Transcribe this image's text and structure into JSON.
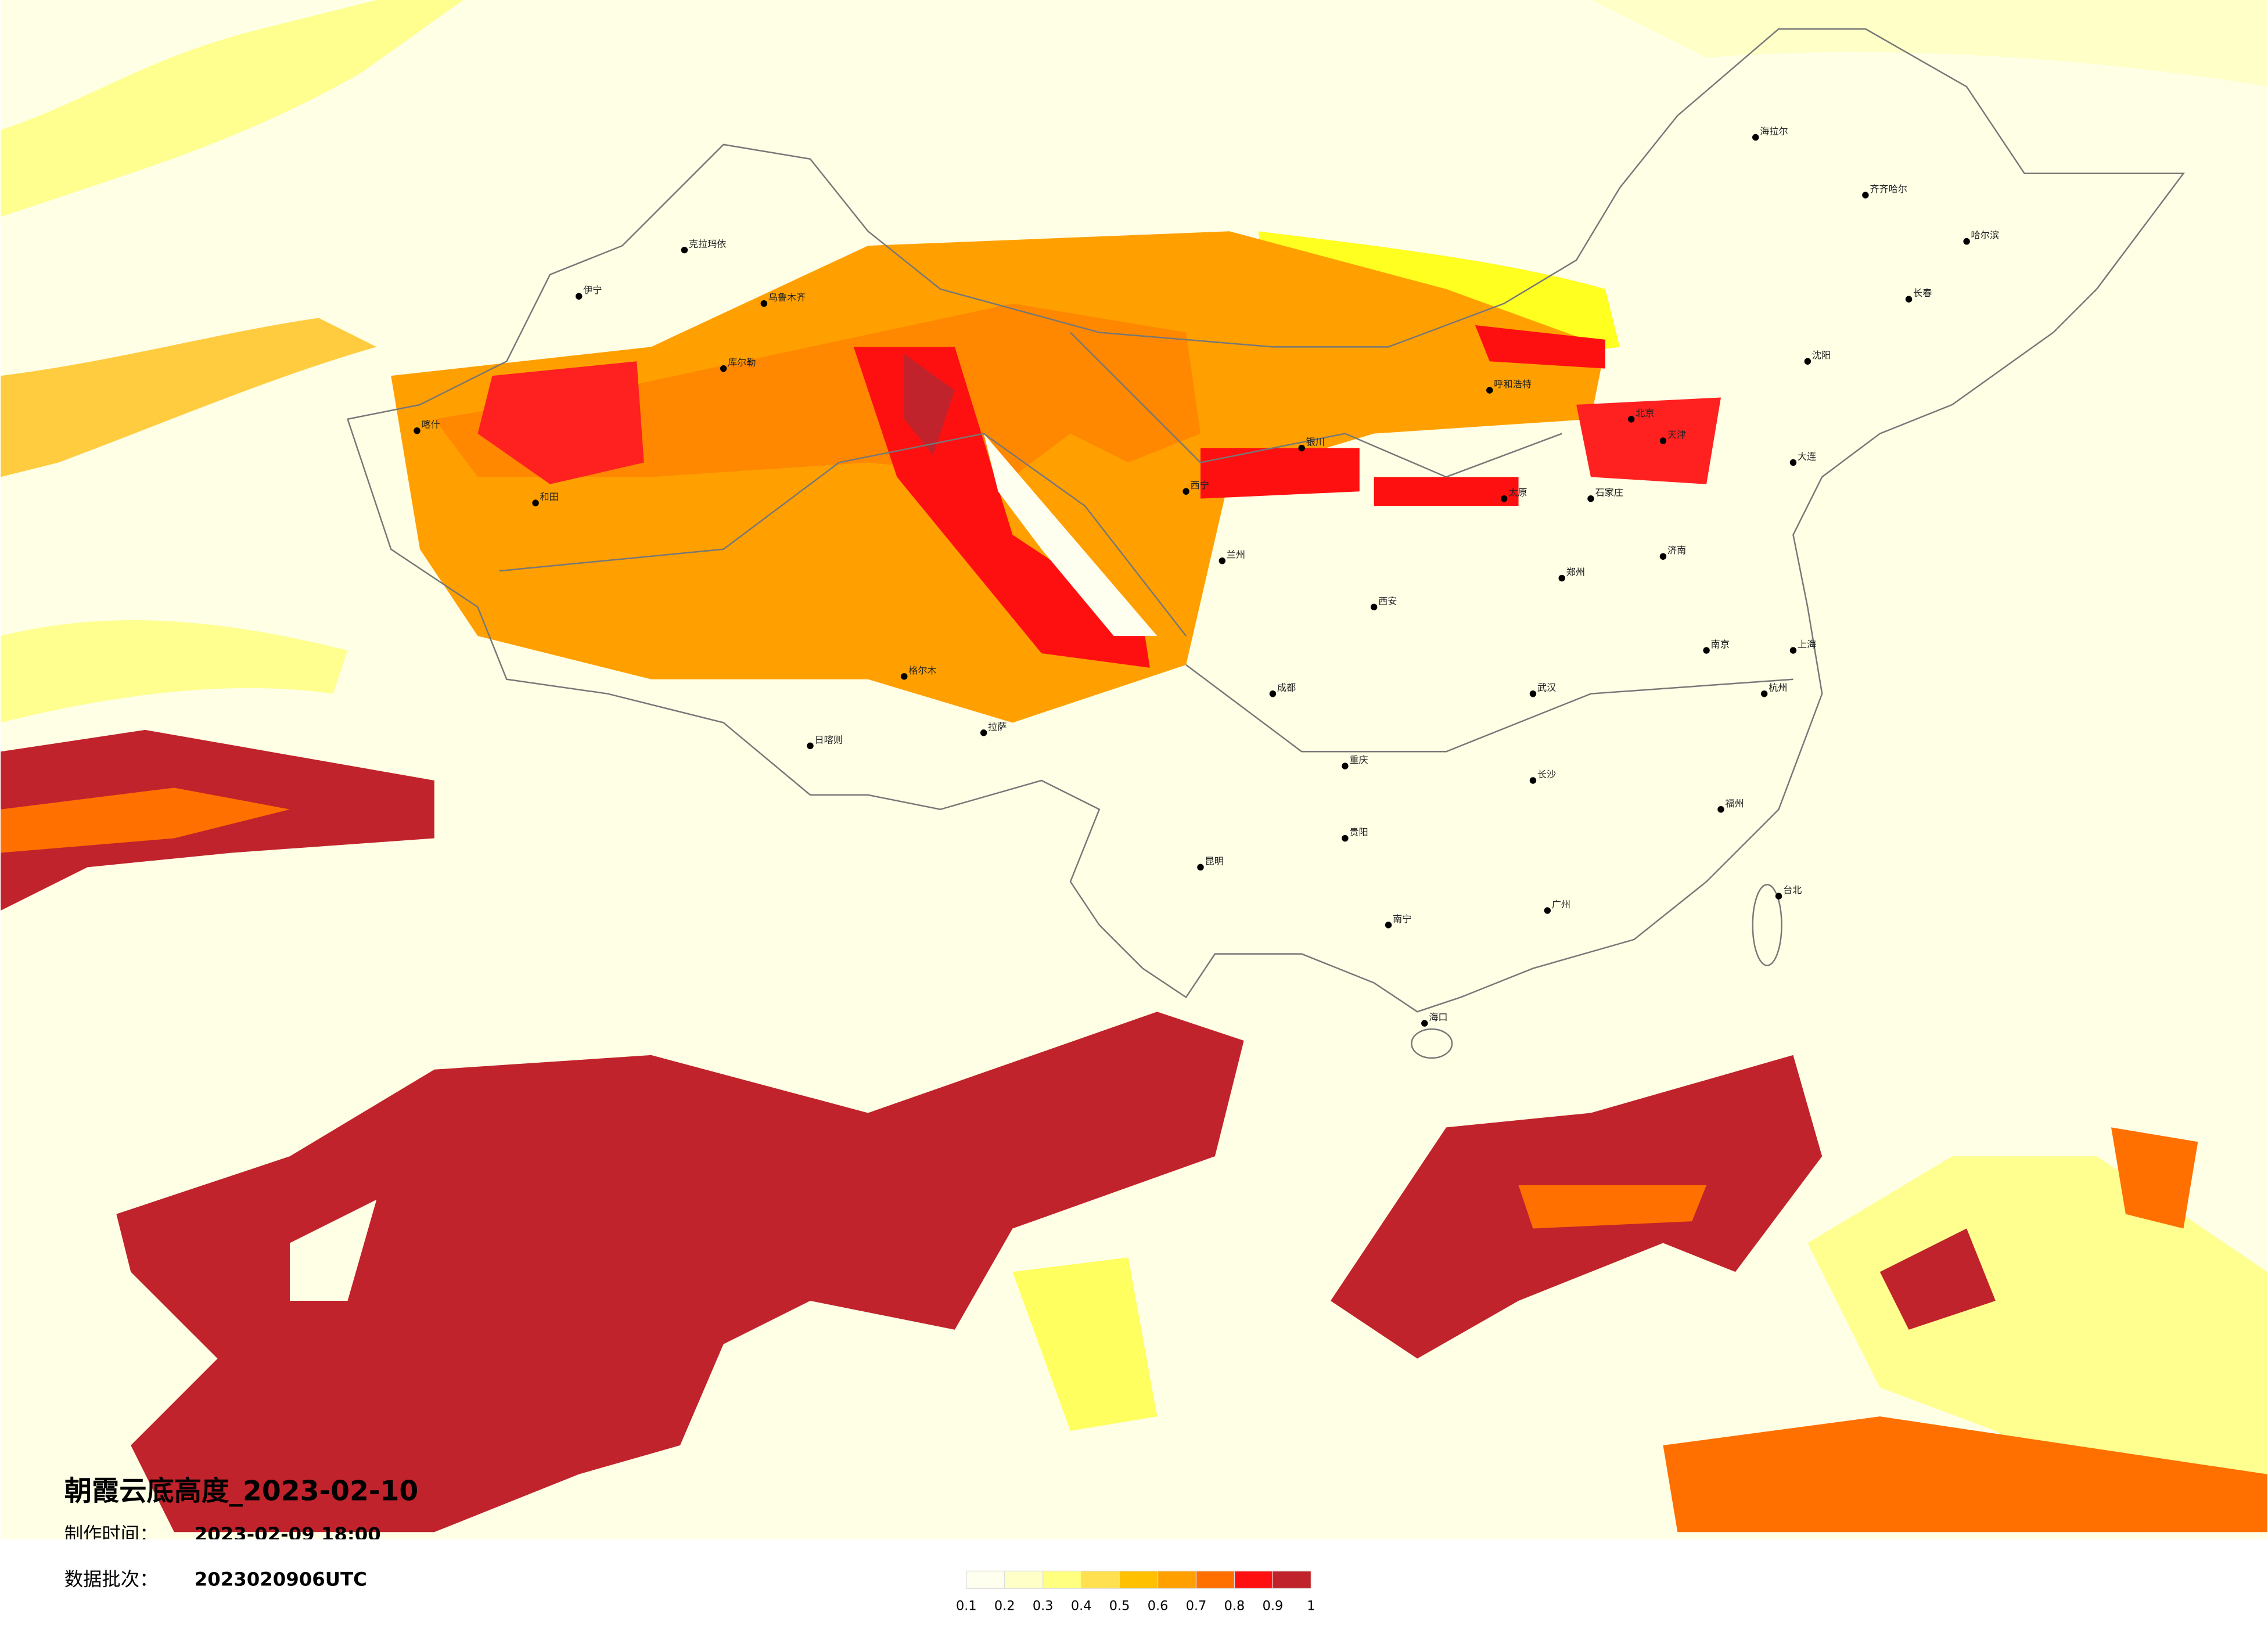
{
  "title": "朝霞云底高度_2023-02-10",
  "made_time_label": "制作时间：",
  "made_time": "2023-02-09 18:00",
  "batch_label": "数据批次：",
  "batch": "2023020906UTC",
  "legend": {
    "colors": [
      "#fffff0",
      "#ffffc8",
      "#ffff80",
      "#ffe050",
      "#ffc000",
      "#ffa000",
      "#ff7000",
      "#ff1010",
      "#c0232b"
    ],
    "ticks": [
      0.1,
      0.2,
      0.3,
      0.4,
      0.5,
      0.6,
      0.7,
      0.8,
      0.9,
      1
    ]
  },
  "cities": [
    "克拉玛依",
    "乌鲁木齐",
    "伊宁",
    "喀什",
    "和田",
    "库尔勒",
    "格尔木",
    "拉萨",
    "日喀则",
    "西宁",
    "兰州",
    "银川",
    "呼和浩特",
    "北京",
    "天津",
    "石家庄",
    "太原",
    "济南",
    "郑州",
    "西安",
    "成都",
    "重庆",
    "武汉",
    "长沙",
    "南京",
    "上海",
    "杭州",
    "福州",
    "广州",
    "南宁",
    "昆明",
    "贵阳",
    "海口",
    "台北",
    "沈阳",
    "长春",
    "哈尔滨",
    "齐齐哈尔",
    "海拉尔",
    "大连"
  ]
}
